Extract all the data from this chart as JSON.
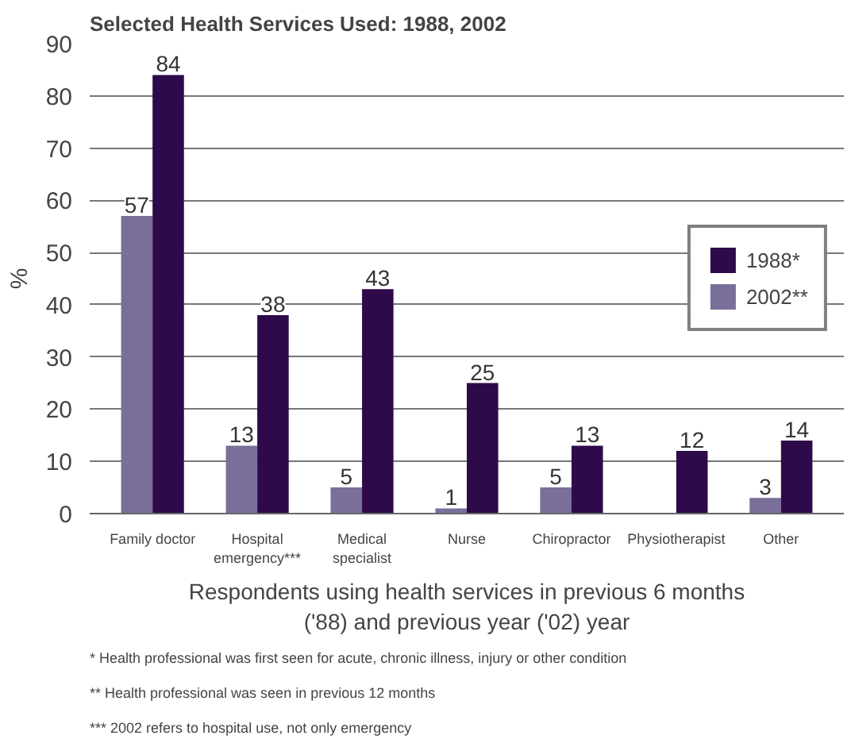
{
  "chart_data": {
    "type": "bar",
    "title": "Selected Health Services Used: 1988, 2002",
    "categories": [
      "Family doctor",
      "Hospital emergency***",
      "Medical specialist",
      "Nurse",
      "Chiropractor",
      "Physiotherapist",
      "Other"
    ],
    "series": [
      {
        "name": "2002**",
        "color": "#7a6e9a",
        "values": [
          57,
          13,
          5,
          1,
          5,
          null,
          3
        ]
      },
      {
        "name": "1988*",
        "color": "#2e0a4a",
        "values": [
          84,
          38,
          43,
          25,
          13,
          12,
          14
        ]
      }
    ],
    "ylabel": "%",
    "xlabel": "Respondents using health services in previous 6 months ('88) and previous year ('02) year",
    "ylim": [
      0,
      90
    ],
    "yticks": [
      0,
      10,
      20,
      30,
      40,
      50,
      60,
      70,
      80,
      90
    ],
    "grid": "y",
    "legend": "right",
    "data_labels": true,
    "annotations": [
      "* Health professional was first seen for acute, chronic illness, injury or other condition",
      "**  Health professional was seen in previous 12 months",
      "*** 2002 refers to hospital use, not only emergency"
    ]
  }
}
